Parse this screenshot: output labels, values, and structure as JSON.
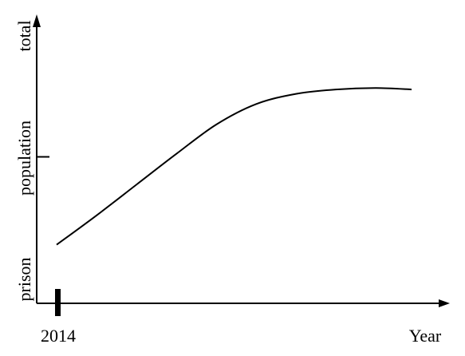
{
  "chart_data": {
    "type": "line",
    "ylabel_words": [
      "prison",
      "population",
      "total"
    ],
    "xlabel": "Year",
    "x_tick_labels": [
      "2014"
    ],
    "ylim": [
      0,
      10
    ],
    "xlim": [
      0,
      10
    ],
    "y_ticks": [
      5
    ],
    "series": [
      {
        "x": [
          0.5,
          1.5,
          2.5,
          3.5,
          4.5,
          5.5,
          6.5,
          7.5,
          8.5,
          9.4
        ],
        "values": [
          2.0,
          3.0,
          4.05,
          5.1,
          6.1,
          6.8,
          7.15,
          7.3,
          7.35,
          7.3
        ]
      }
    ],
    "grid": false,
    "legend": "none"
  }
}
